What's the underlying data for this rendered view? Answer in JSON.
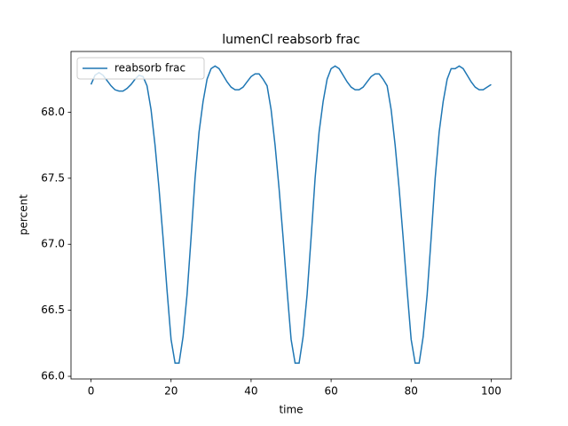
{
  "chart_data": {
    "type": "line",
    "title": "lumenCl reabsorb frac",
    "xlabel": "time",
    "ylabel": "percent",
    "x": [
      0,
      1,
      2,
      3,
      4,
      5,
      6,
      7,
      8,
      9,
      10,
      11,
      12,
      13,
      14,
      15,
      16,
      17,
      18,
      19,
      20,
      21,
      22,
      23,
      24,
      25,
      26,
      27,
      28,
      29,
      30,
      31,
      32,
      33,
      34,
      35,
      36,
      37,
      38,
      39,
      40,
      41,
      42,
      43,
      44,
      45,
      46,
      47,
      48,
      49,
      50,
      51,
      52,
      53,
      54,
      55,
      56,
      57,
      58,
      59,
      60,
      61,
      62,
      63,
      64,
      65,
      66,
      67,
      68,
      69,
      70,
      71,
      72,
      73,
      74,
      75,
      76,
      77,
      78,
      79,
      80,
      81,
      82,
      83,
      84,
      85,
      86,
      87,
      88,
      89,
      90,
      91,
      92,
      93,
      94,
      95,
      96,
      97,
      98,
      99,
      100
    ],
    "series": [
      {
        "name": "reabsorb frac",
        "color": "#1f77b4",
        "values": [
          68.21,
          68.28,
          68.3,
          68.28,
          68.24,
          68.2,
          68.17,
          68.16,
          68.16,
          68.18,
          68.21,
          68.25,
          68.28,
          68.27,
          68.2,
          68.02,
          67.75,
          67.42,
          67.05,
          66.65,
          66.28,
          66.1,
          66.1,
          66.3,
          66.62,
          67.05,
          67.5,
          67.85,
          68.08,
          68.25,
          68.33,
          68.35,
          68.33,
          68.28,
          68.23,
          68.19,
          68.17,
          68.17,
          68.19,
          68.23,
          68.27,
          68.29,
          68.29,
          68.25,
          68.2,
          68.02,
          67.75,
          67.42,
          67.05,
          66.65,
          66.28,
          66.1,
          66.1,
          66.3,
          66.62,
          67.05,
          67.5,
          67.85,
          68.08,
          68.25,
          68.33,
          68.35,
          68.33,
          68.28,
          68.23,
          68.19,
          68.17,
          68.17,
          68.19,
          68.23,
          68.27,
          68.29,
          68.29,
          68.25,
          68.2,
          68.02,
          67.75,
          67.42,
          67.05,
          66.65,
          66.28,
          66.1,
          66.1,
          66.3,
          66.62,
          67.05,
          67.5,
          67.85,
          68.08,
          68.25,
          68.33,
          68.33,
          68.35,
          68.33,
          68.28,
          68.23,
          68.19,
          68.17,
          68.17,
          68.19,
          68.21
        ]
      }
    ],
    "xlim": [
      -5,
      105
    ],
    "xticks": [
      0,
      20,
      40,
      60,
      80,
      100
    ],
    "ylim": [
      65.98,
      68.46
    ],
    "yticks": [
      {
        "value": 66,
        "label": "66.0"
      },
      {
        "value": 66.5,
        "label": "66.5"
      },
      {
        "value": 67,
        "label": "67.0"
      },
      {
        "value": 67.5,
        "label": "67.5"
      },
      {
        "value": 68,
        "label": "68.0"
      }
    ],
    "legend": "upper left",
    "grid": false
  }
}
